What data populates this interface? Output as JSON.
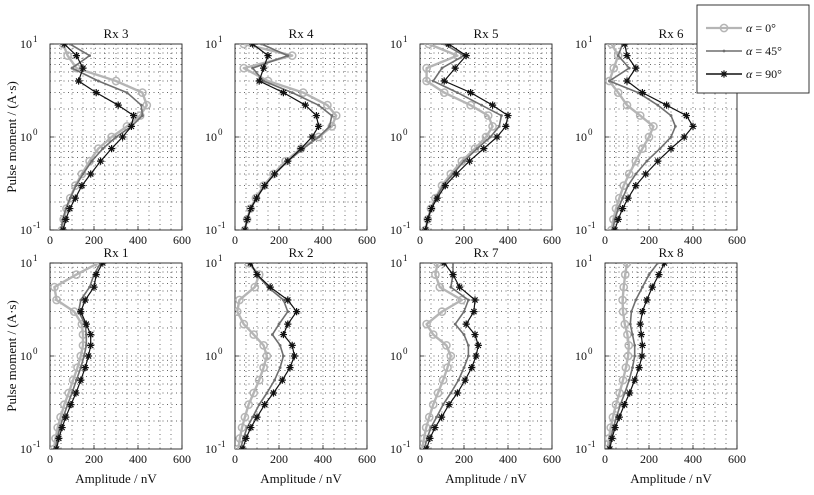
{
  "chart_data": {
    "type": "line",
    "xlabel": "Amplitude / nV",
    "ylabel": "Pulse moment / (A·s)",
    "xlim": [
      0,
      600
    ],
    "ylim": [
      0.1,
      10
    ],
    "y_scale": "log",
    "grid": true,
    "legend_placement": "top-right",
    "x_ticks": [
      "0",
      "200",
      "400",
      "600"
    ],
    "y_tick_base": "10",
    "y_tick_exponents": [
      "-1",
      "0",
      "1"
    ],
    "legend": [
      {
        "greek": "α",
        "text": " = 0°",
        "marker": "circle",
        "color": "#b5b5b5"
      },
      {
        "greek": "α",
        "text": " = 45°",
        "marker": "dot",
        "color": "#6f6f6f"
      },
      {
        "greek": "α",
        "text": " = 90°",
        "marker": "star",
        "color": "#111111"
      }
    ],
    "y": [
      0.1,
      0.13,
      0.17,
      0.22,
      0.3,
      0.4,
      0.55,
      0.75,
      1.0,
      1.3,
      1.7,
      2.2,
      3.0,
      4.0,
      5.5,
      7.5,
      10.0
    ],
    "panels": [
      {
        "title": "Rx 3",
        "series": [
          {
            "x": [
              55,
              62,
              75,
              92,
              115,
              145,
              180,
              220,
              280,
              350,
              410,
              440,
              420,
              300,
              120,
              80,
              60
            ]
          },
          {
            "x": [
              50,
              58,
              72,
              92,
              118,
              150,
              190,
              240,
              300,
              370,
              420,
              415,
              350,
              220,
              100,
              180,
              90
            ]
          },
          {
            "x": [
              60,
              72,
              90,
              115,
              145,
              185,
              230,
              280,
              330,
              370,
              380,
              310,
              210,
              130,
              150,
              120,
              65
            ]
          }
        ]
      },
      {
        "title": "Rx 4",
        "series": [
          {
            "x": [
              45,
              55,
              70,
              95,
              130,
              175,
              230,
              300,
              380,
              440,
              460,
              420,
              310,
              150,
              40,
              260,
              40
            ]
          },
          {
            "x": [
              45,
              55,
              72,
              98,
              135,
              180,
              240,
              310,
              380,
              430,
              440,
              380,
              260,
              130,
              80,
              240,
              120
            ]
          },
          {
            "x": [
              45,
              55,
              72,
              98,
              135,
              180,
              240,
              300,
              350,
              380,
              370,
              320,
              220,
              110,
              130,
              150,
              80
            ]
          }
        ]
      },
      {
        "title": "Rx 5",
        "series": [
          {
            "x": [
              25,
              35,
              50,
              70,
              100,
              140,
              190,
              250,
              300,
              330,
              310,
              230,
              110,
              30,
              30,
              170,
              40
            ]
          },
          {
            "x": [
              25,
              35,
              50,
              72,
              105,
              150,
              200,
              260,
              320,
              360,
              370,
              280,
              170,
              60,
              100,
              200,
              110
            ]
          },
          {
            "x": [
              25,
              35,
              52,
              78,
              115,
              165,
              225,
              290,
              350,
              390,
              400,
              330,
              230,
              110,
              160,
              210,
              130
            ]
          }
        ]
      },
      {
        "title": "Rx 6",
        "series": [
          {
            "x": [
              30,
              38,
              50,
              65,
              85,
              110,
              140,
              170,
              200,
              220,
              160,
              100,
              60,
              20,
              40,
              60,
              30
            ]
          },
          {
            "x": [
              35,
              45,
              60,
              80,
              105,
              140,
              190,
              250,
              300,
              320,
              300,
              240,
              150,
              20,
              110,
              60,
              80
            ]
          },
          {
            "x": [
              45,
              60,
              80,
              105,
              140,
              185,
              240,
              300,
              360,
              400,
              370,
              280,
              170,
              100,
              140,
              100,
              90
            ]
          }
        ]
      },
      {
        "title": "Rx 1",
        "series": [
          {
            "x": [
              18,
              25,
              35,
              48,
              65,
              85,
              105,
              125,
              140,
              150,
              150,
              145,
              110,
              30,
              20,
              120,
              220
            ]
          },
          {
            "x": [
              25,
              33,
              45,
              60,
              80,
              100,
              120,
              140,
              155,
              165,
              165,
              160,
              130,
              140,
              180,
              200,
              230
            ]
          },
          {
            "x": [
              30,
              40,
              55,
              72,
              95,
              118,
              140,
              160,
              175,
              185,
              185,
              165,
              140,
              160,
              200,
              210,
              240
            ]
          }
        ]
      },
      {
        "title": "Rx 2",
        "series": [
          {
            "x": [
              15,
              22,
              32,
              45,
              62,
              85,
              110,
              130,
              145,
              130,
              85,
              40,
              10,
              20,
              90,
              110,
              60
            ]
          },
          {
            "x": [
              25,
              38,
              55,
              80,
              110,
              145,
              180,
              205,
              220,
              205,
              170,
              200,
              240,
              220,
              150,
              100,
              70
            ]
          },
          {
            "x": [
              35,
              50,
              72,
              100,
              135,
              175,
              215,
              250,
              270,
              260,
              220,
              240,
              280,
              240,
              160,
              100,
              70
            ]
          }
        ]
      },
      {
        "title": "Rx 7",
        "series": [
          {
            "x": [
              10,
              18,
              28,
              42,
              60,
              82,
              105,
              125,
              140,
              120,
              60,
              30,
              100,
              190,
              90,
              70,
              80
            ]
          },
          {
            "x": [
              20,
              32,
              50,
              75,
              105,
              140,
              175,
              200,
              220,
              220,
              200,
              160,
              200,
              220,
              140,
              150,
              150
            ]
          },
          {
            "x": [
              30,
              45,
              68,
              98,
              132,
              170,
              205,
              235,
              255,
              265,
              250,
              210,
              245,
              250,
              180,
              150,
              110
            ]
          }
        ]
      },
      {
        "title": "Rx 8",
        "series": [
          {
            "x": [
              12,
              18,
              26,
              36,
              50,
              66,
              82,
              95,
              105,
              108,
              102,
              90,
              82,
              80,
              85,
              92,
              100
            ]
          },
          {
            "x": [
              18,
              26,
              38,
              52,
              70,
              90,
              110,
              125,
              135,
              135,
              125,
              115,
              120,
              140,
              170,
              200,
              240
            ]
          },
          {
            "x": [
              22,
              32,
              46,
              65,
              88,
              112,
              135,
              155,
              168,
              170,
              165,
              160,
              170,
              190,
              215,
              245,
              270
            ]
          }
        ]
      }
    ]
  }
}
